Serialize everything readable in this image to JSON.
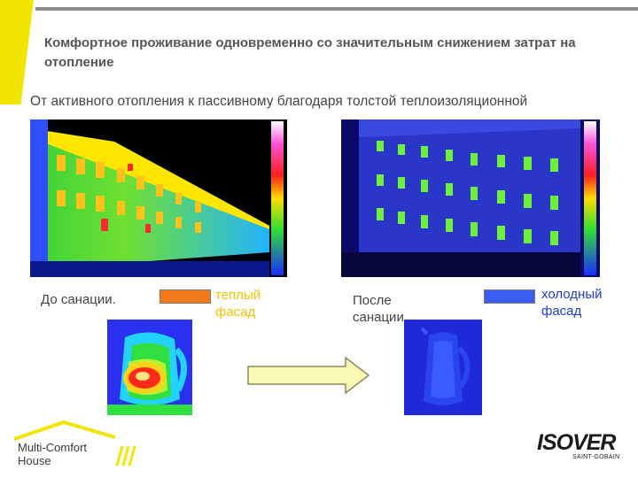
{
  "header": {
    "title": "Комфортное проживание одновременно со значительным снижением затрат на отопление",
    "subtitle": "От активного отопления к пассивному благодаря толстой теплоизоляционной"
  },
  "before": {
    "label": "До санации.",
    "legend_label": "теплый фасад",
    "legend_color": "#f27a1a"
  },
  "after": {
    "label": "После санации.",
    "legend_label": "холодный фасад",
    "legend_color": "#3a5cf0"
  },
  "logos": {
    "multi_comfort": "Multi-Comfort House",
    "isover_main": "ISOVER",
    "isover_sub": "SAINT-GOBAIN"
  },
  "colors": {
    "accent_yellow": "#f2e600",
    "arrow_fill": "#fafab4",
    "text_grey": "#555555"
  }
}
